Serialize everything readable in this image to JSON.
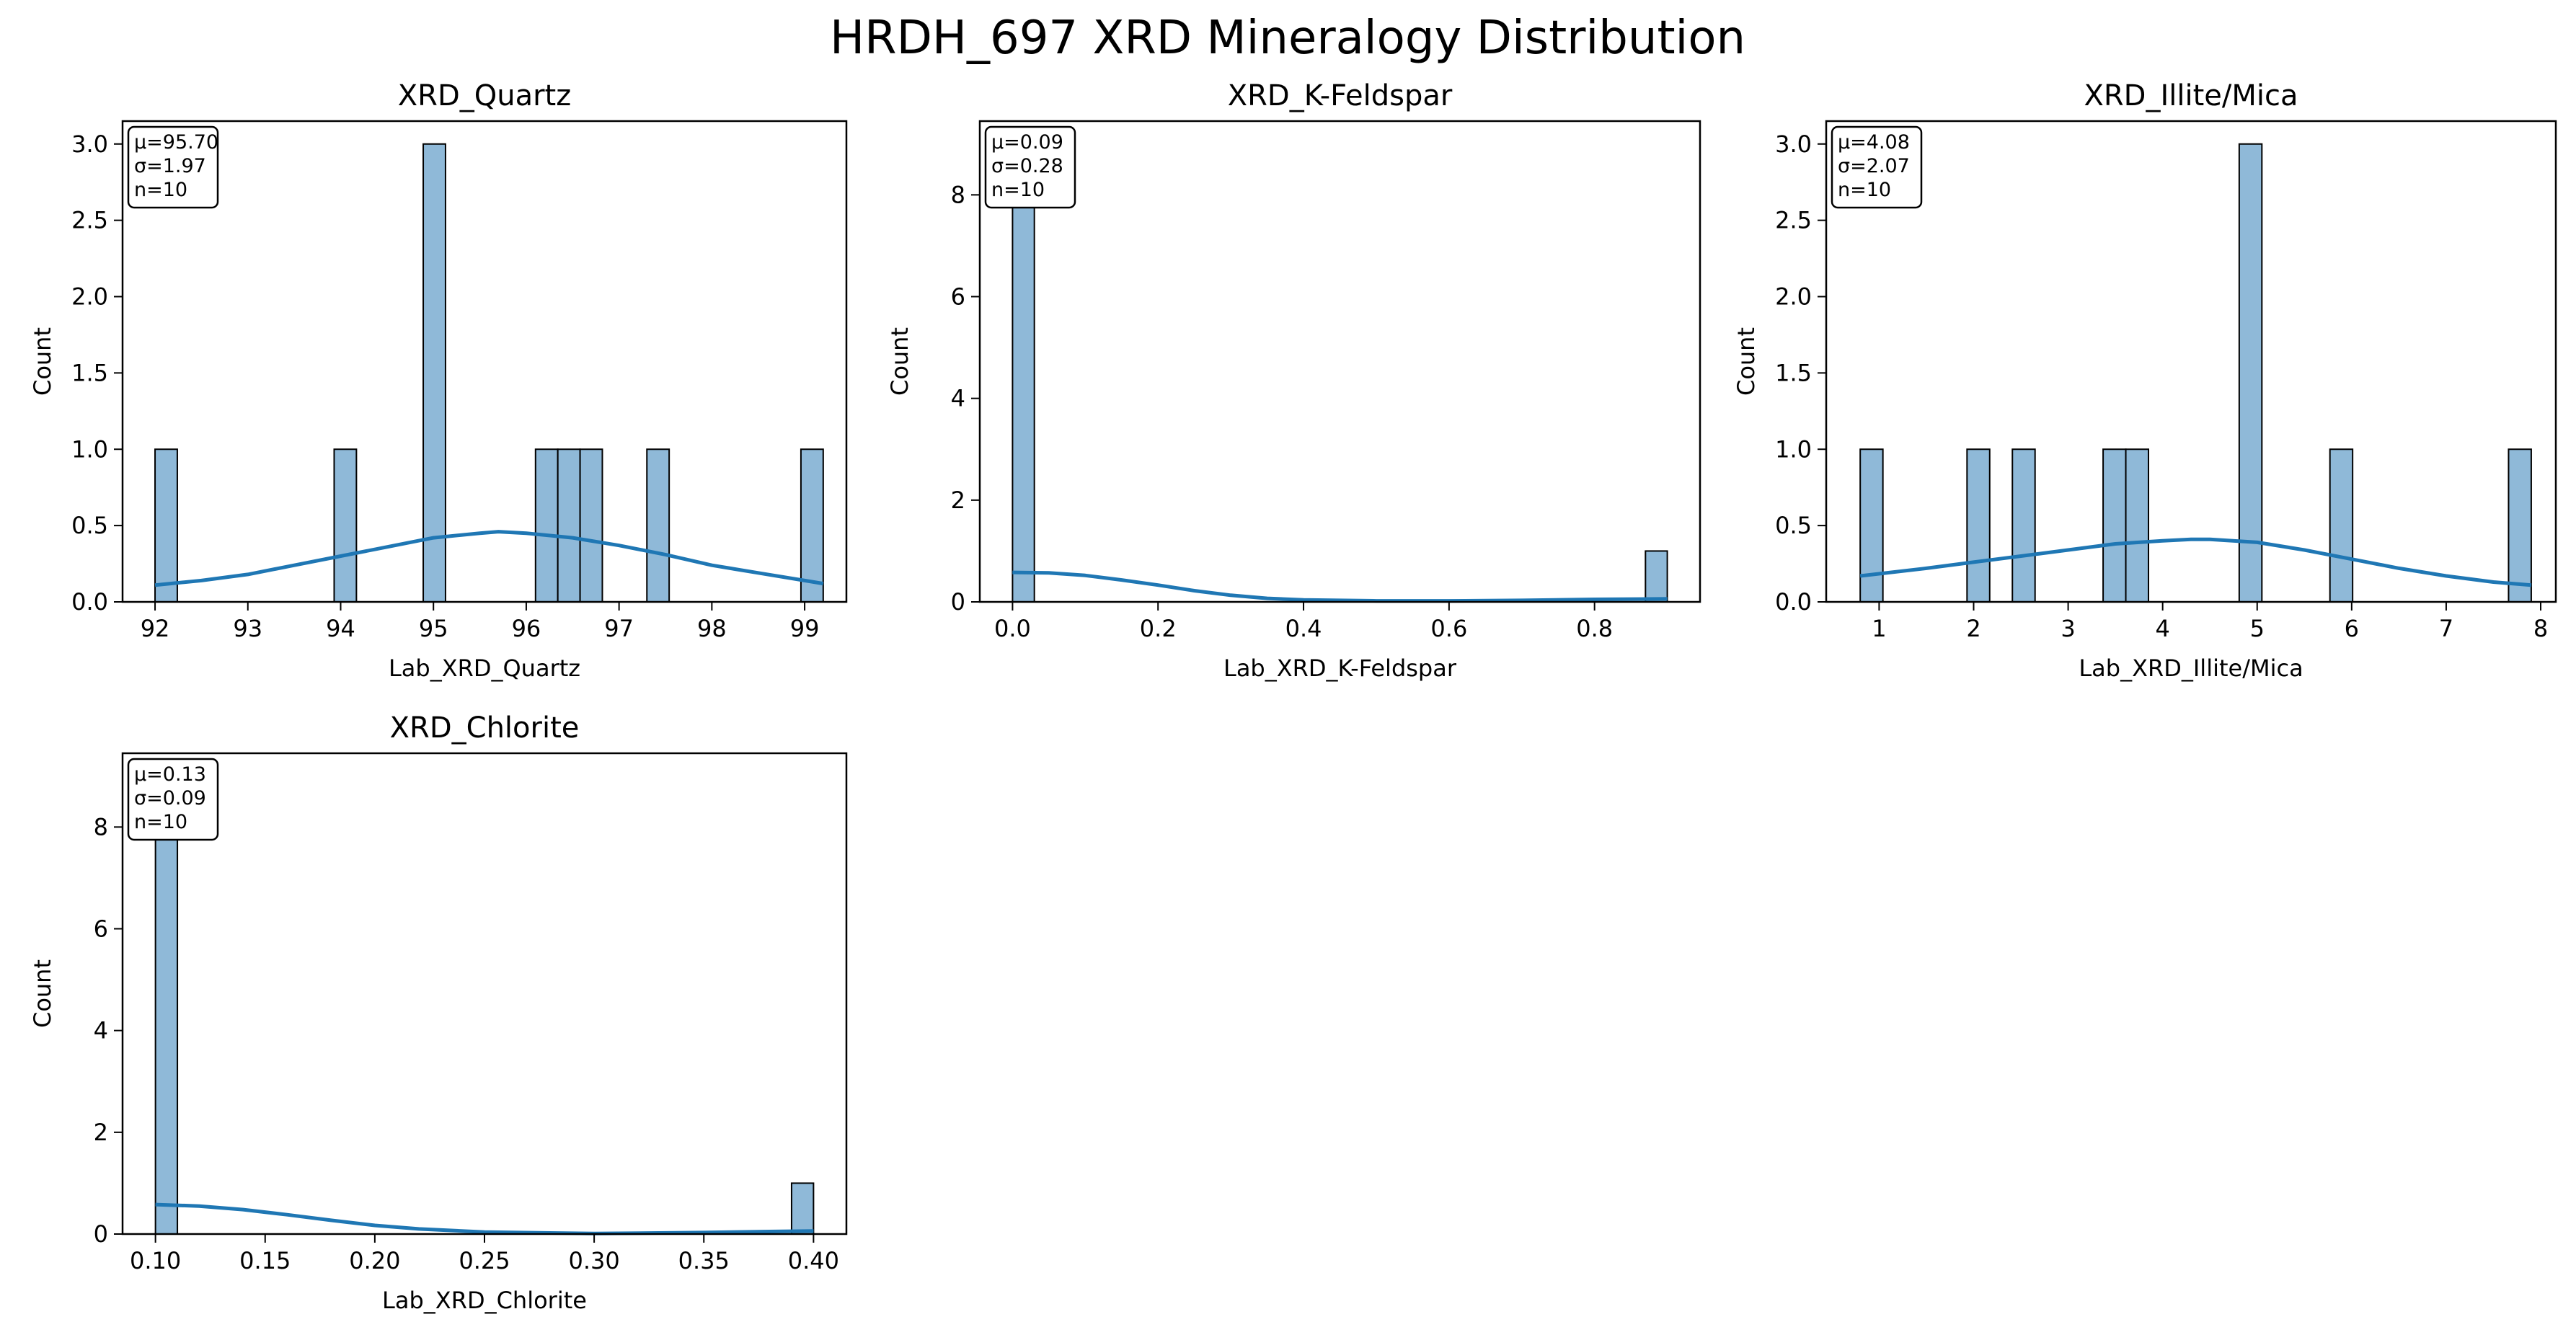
{
  "figure": {
    "title": "HRDH_697 XRD Mineralogy Distribution"
  },
  "style": {
    "bar_fill": "#8fb9d8",
    "bar_edge": "#000000",
    "kde_color": "#1f77b4",
    "background": "#ffffff"
  },
  "chart_data": [
    {
      "type": "bar",
      "subtype": "histogram",
      "title": "XRD_Quartz",
      "xlabel": "Lab_XRD_Quartz",
      "ylabel": "Count",
      "stats": [
        "μ=95.70",
        "σ=1.97",
        "n=10"
      ],
      "xlim": [
        91.65,
        99.45
      ],
      "ylim": [
        0,
        3.15
      ],
      "xticks": [
        92,
        93,
        94,
        95,
        96,
        97,
        98,
        99
      ],
      "yticks": [
        0.0,
        0.5,
        1.0,
        1.5,
        2.0,
        2.5,
        3.0
      ],
      "ytick_labels": [
        "0.0",
        "0.5",
        "1.0",
        "1.5",
        "2.0",
        "2.5",
        "3.0"
      ],
      "bins": [
        [
          92.0,
          92.24,
          1
        ],
        [
          93.93,
          94.17,
          1
        ],
        [
          94.89,
          95.13,
          3
        ],
        [
          96.1,
          96.34,
          1
        ],
        [
          96.34,
          96.58,
          1
        ],
        [
          96.58,
          96.82,
          1
        ],
        [
          97.3,
          97.54,
          1
        ],
        [
          98.96,
          99.2,
          1
        ]
      ],
      "kde": {
        "x": [
          92.0,
          92.5,
          93.0,
          93.5,
          94.0,
          94.5,
          95.0,
          95.5,
          95.7,
          96.0,
          96.5,
          97.0,
          97.5,
          98.0,
          98.5,
          99.0,
          99.2
        ],
        "y": [
          0.11,
          0.14,
          0.18,
          0.24,
          0.3,
          0.36,
          0.42,
          0.45,
          0.46,
          0.45,
          0.42,
          0.37,
          0.31,
          0.24,
          0.19,
          0.14,
          0.12
        ]
      }
    },
    {
      "type": "bar",
      "subtype": "histogram",
      "title": "XRD_K-Feldspar",
      "xlabel": "Lab_XRD_K-Feldspar",
      "ylabel": "Count",
      "stats": [
        "μ=0.09",
        "σ=0.28",
        "n=10"
      ],
      "xlim": [
        -0.045,
        0.945
      ],
      "ylim": [
        0,
        9.45
      ],
      "xticks": [
        0.0,
        0.2,
        0.4,
        0.6,
        0.8
      ],
      "xtick_labels": [
        "0.0",
        "0.2",
        "0.4",
        "0.6",
        "0.8"
      ],
      "yticks": [
        0,
        2,
        4,
        6,
        8
      ],
      "bins": [
        [
          0.0,
          0.03,
          9
        ],
        [
          0.87,
          0.9,
          1
        ]
      ],
      "kde": {
        "x": [
          0.0,
          0.05,
          0.1,
          0.15,
          0.2,
          0.25,
          0.3,
          0.35,
          0.4,
          0.5,
          0.6,
          0.7,
          0.8,
          0.9
        ],
        "y": [
          0.58,
          0.57,
          0.52,
          0.43,
          0.33,
          0.22,
          0.13,
          0.07,
          0.04,
          0.02,
          0.02,
          0.03,
          0.05,
          0.06
        ]
      }
    },
    {
      "type": "bar",
      "subtype": "histogram",
      "title": "XRD_Illite/Mica",
      "xlabel": "Lab_XRD_Illite/Mica",
      "ylabel": "Count",
      "stats": [
        "μ=4.08",
        "σ=2.07",
        "n=10"
      ],
      "xlim": [
        0.44,
        8.16
      ],
      "ylim": [
        0,
        3.15
      ],
      "xticks": [
        1,
        2,
        3,
        4,
        5,
        6,
        7,
        8
      ],
      "yticks": [
        0.0,
        0.5,
        1.0,
        1.5,
        2.0,
        2.5,
        3.0
      ],
      "ytick_labels": [
        "0.0",
        "0.5",
        "1.0",
        "1.5",
        "2.0",
        "2.5",
        "3.0"
      ],
      "bins": [
        [
          0.8,
          1.04,
          1
        ],
        [
          1.93,
          2.17,
          1
        ],
        [
          2.41,
          2.65,
          1
        ],
        [
          3.37,
          3.61,
          1
        ],
        [
          3.61,
          3.85,
          1
        ],
        [
          4.81,
          5.05,
          3
        ],
        [
          5.77,
          6.01,
          1
        ],
        [
          7.66,
          7.9,
          1
        ]
      ],
      "kde": {
        "x": [
          0.8,
          1.5,
          2.0,
          2.5,
          3.0,
          3.5,
          4.0,
          4.3,
          4.5,
          5.0,
          5.5,
          6.0,
          6.5,
          7.0,
          7.5,
          7.9
        ],
        "y": [
          0.17,
          0.22,
          0.26,
          0.3,
          0.34,
          0.38,
          0.4,
          0.41,
          0.41,
          0.39,
          0.34,
          0.28,
          0.22,
          0.17,
          0.13,
          0.11
        ]
      }
    },
    {
      "type": "bar",
      "subtype": "histogram",
      "title": "XRD_Chlorite",
      "xlabel": "Lab_XRD_Chlorite",
      "ylabel": "Count",
      "stats": [
        "μ=0.13",
        "σ=0.09",
        "n=10"
      ],
      "xlim": [
        0.085,
        0.415
      ],
      "ylim": [
        0,
        9.45
      ],
      "xticks": [
        0.1,
        0.15,
        0.2,
        0.25,
        0.3,
        0.35,
        0.4
      ],
      "xtick_labels": [
        "0.10",
        "0.15",
        "0.20",
        "0.25",
        "0.30",
        "0.35",
        "0.40"
      ],
      "yticks": [
        0,
        2,
        4,
        6,
        8
      ],
      "bins": [
        [
          0.1,
          0.11,
          9
        ],
        [
          0.39,
          0.4,
          1
        ]
      ],
      "kde": {
        "x": [
          0.1,
          0.12,
          0.14,
          0.16,
          0.18,
          0.2,
          0.22,
          0.25,
          0.3,
          0.35,
          0.38,
          0.4
        ],
        "y": [
          0.58,
          0.55,
          0.48,
          0.38,
          0.27,
          0.17,
          0.1,
          0.04,
          0.01,
          0.03,
          0.05,
          0.06
        ]
      }
    }
  ]
}
